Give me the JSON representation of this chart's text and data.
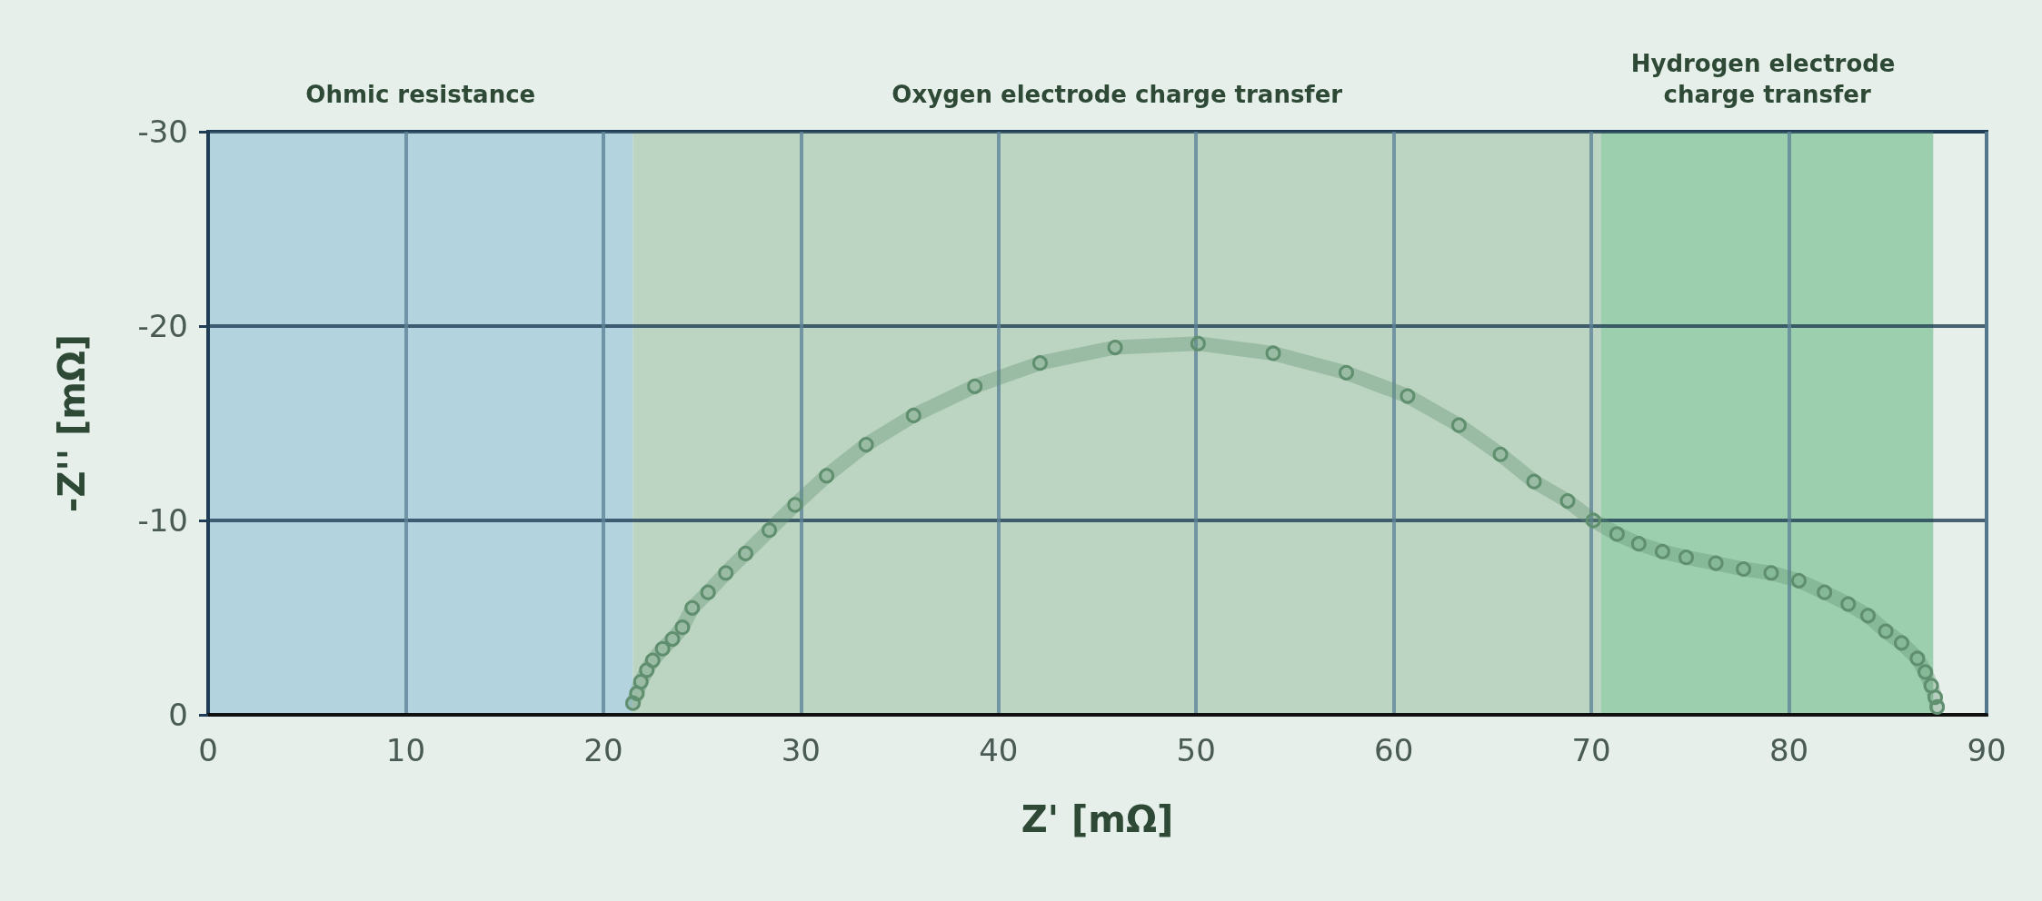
{
  "chart_data": {
    "type": "line",
    "xlabel": "Z' [mΩ]",
    "ylabel": "-Z'' [mΩ]",
    "x": [
      21.5,
      21.7,
      21.9,
      22.2,
      22.5,
      23.0,
      23.5,
      24.0,
      24.5,
      25.3,
      26.2,
      27.2,
      28.4,
      29.7,
      31.3,
      33.3,
      35.7,
      38.8,
      42.1,
      45.9,
      50.1,
      53.9,
      57.6,
      60.7,
      63.3,
      65.4,
      67.1,
      68.8,
      70.1,
      71.3,
      72.4,
      73.6,
      74.8,
      76.3,
      77.7,
      79.1,
      80.5,
      81.8,
      83.0,
      84.0,
      84.9,
      85.7,
      86.5,
      86.9,
      87.2,
      87.4,
      87.5
    ],
    "series": [
      {
        "color": "#5f8f6e",
        "values": [
          -0.6,
          -1.1,
          -1.7,
          -2.3,
          -2.8,
          -3.4,
          -3.9,
          -4.5,
          -5.5,
          -6.3,
          -7.3,
          -8.3,
          -9.5,
          -10.8,
          -12.3,
          -13.9,
          -15.4,
          -16.9,
          -18.1,
          -18.9,
          -19.1,
          -18.6,
          -17.6,
          -16.4,
          -14.9,
          -13.4,
          -12.0,
          -11.0,
          -10.0,
          -9.3,
          -8.8,
          -8.4,
          -8.1,
          -7.8,
          -7.5,
          -7.3,
          -6.9,
          -6.3,
          -5.7,
          -5.1,
          -4.3,
          -3.7,
          -2.9,
          -2.2,
          -1.5,
          -0.9,
          -0.4
        ]
      }
    ],
    "xlim": [
      0,
      90
    ],
    "xticks": [
      0,
      10,
      20,
      30,
      40,
      50,
      60,
      70,
      80,
      90
    ],
    "ylim": [
      0,
      -30
    ],
    "yticks": [
      0,
      -10,
      -20,
      -30
    ],
    "bands": [
      {
        "axis": "x",
        "from": 0,
        "to": 21.5,
        "label": "Ohmic resistance",
        "color": "#b3d3df"
      },
      {
        "axis": "x",
        "from": 21.5,
        "to": 70.5,
        "label": "Oxygen electrode charge transfer",
        "color": "#bcd5c2"
      },
      {
        "axis": "x",
        "from": 70.5,
        "to": 87.3,
        "label": "Hydrogen electrode charge transfer",
        "color": "#9ccfae"
      }
    ],
    "grid": true,
    "marker": "circle",
    "line_style": "solid"
  }
}
